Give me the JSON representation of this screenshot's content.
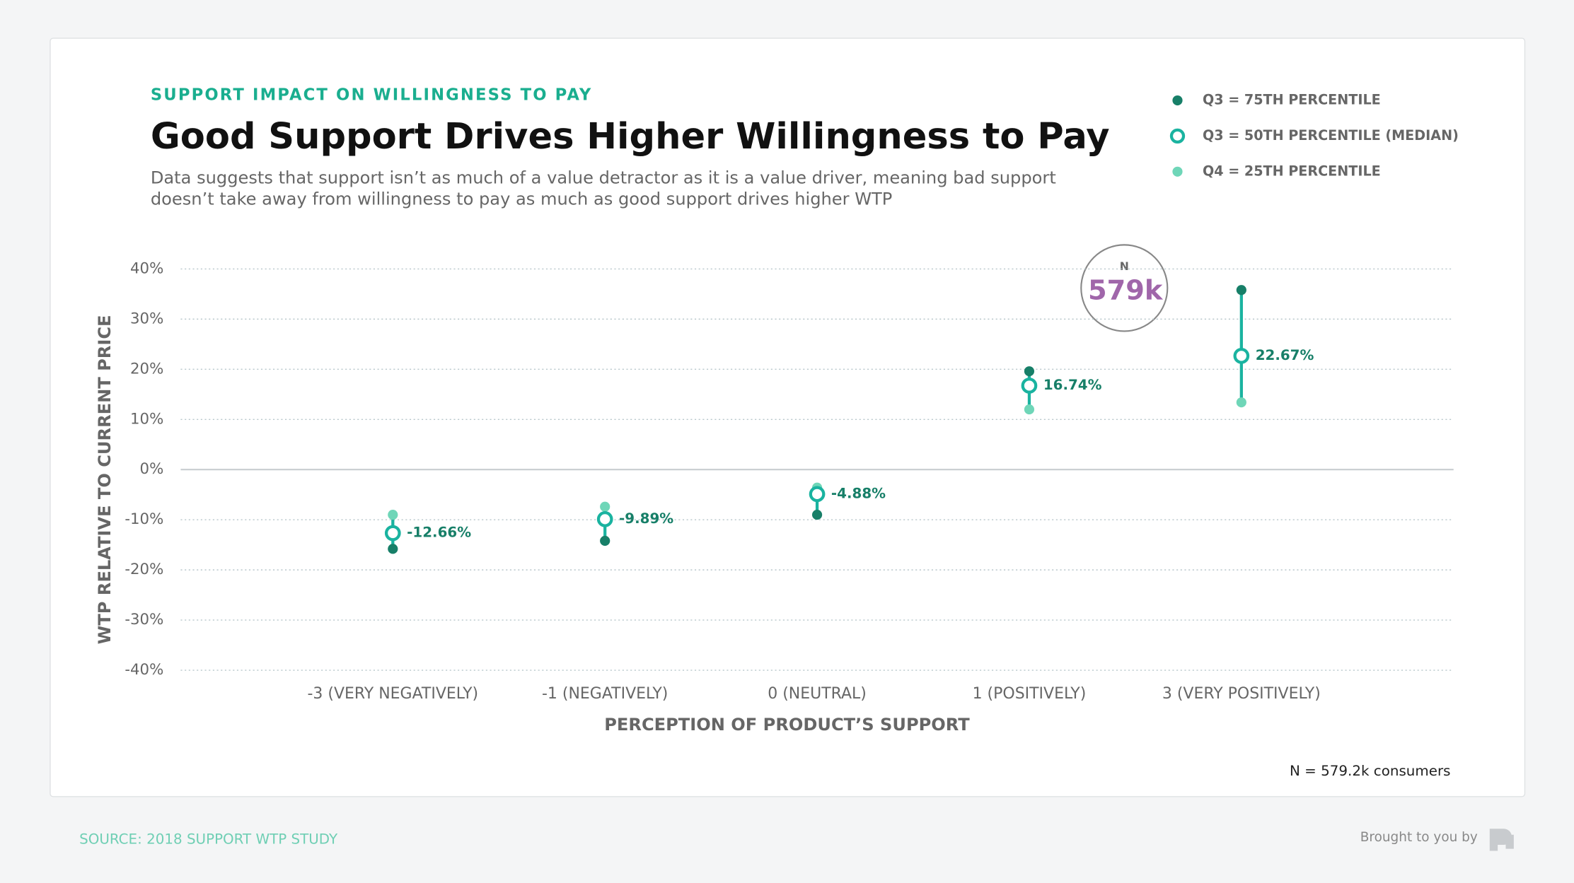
{
  "chart_data": {
    "type": "dot_range",
    "eyebrow": "SUPPORT IMPACT ON WILLINGNESS TO PAY",
    "title": "Good Support Drives Higher Willingness to Pay",
    "description": [
      "Data suggests that support isn’t as much of a value detractor as it is a value driver, meaning bad support",
      "doesn’t take away from willingness to pay as much as good support drives higher WTP"
    ],
    "x_label": "PERCEPTION OF PRODUCT’S SUPPORT",
    "y_label": "WTP RELATIVE TO CURRENT PRICE",
    "categories": [
      "-3 (VERY NEGATIVELY)",
      "-1 (NEGATIVELY)",
      "0 (NEUTRAL)",
      "1 (POSITIVELY)",
      "3 (VERY POSITIVELY)"
    ],
    "series": [
      {
        "name": "Q3 = 75TH PERCENTILE",
        "color": "#177f68",
        "values": [
          -15.8,
          -14.2,
          -9.0,
          19.6,
          35.8
        ]
      },
      {
        "name": "Q3 = 50TH PERCENTILE (MEDIAN)",
        "color": "#1ab3a0",
        "values": [
          -12.66,
          -9.89,
          -4.88,
          16.74,
          22.67
        ],
        "value_labels": [
          "-12.66%",
          "-9.89%",
          "-4.88%",
          "16.74%",
          "22.67%"
        ]
      },
      {
        "name": "Q4 = 25TH PERCENTILE",
        "color": "#6fd6b8",
        "values": [
          -9.0,
          -7.4,
          -3.6,
          12.0,
          13.4
        ]
      }
    ],
    "ylim": [
      -40,
      40
    ],
    "yticks": [
      {
        "value": -40,
        "label": "-40%"
      },
      {
        "value": -30,
        "label": "-30%"
      },
      {
        "value": -20,
        "label": "-20%"
      },
      {
        "value": -10,
        "label": "-10%"
      },
      {
        "value": 0,
        "label": "0%"
      },
      {
        "value": 10,
        "label": "10%"
      },
      {
        "value": 20,
        "label": "20%"
      },
      {
        "value": 30,
        "label": "30%"
      },
      {
        "value": 40,
        "label": "40%"
      }
    ],
    "grid": true,
    "badge": {
      "label": "N",
      "value": "579k"
    },
    "footnote": "N = 579.2k consumers",
    "source": "SOURCE: 2018 SUPPORT WTP STUDY",
    "credit": "Brought to you by"
  }
}
